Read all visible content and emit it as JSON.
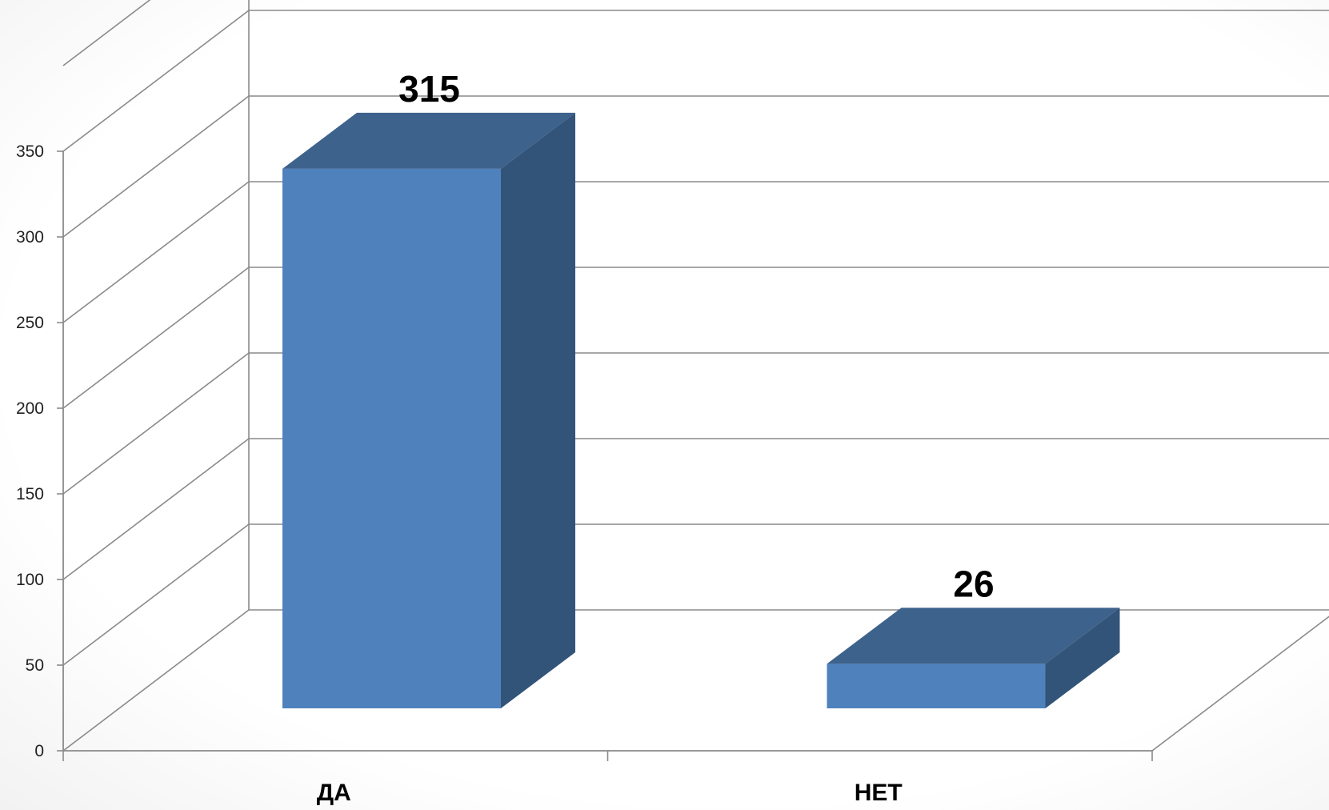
{
  "chart_data": {
    "type": "bar",
    "style": "3d-column",
    "categories": [
      "ДА",
      "НЕТ"
    ],
    "values": [
      315,
      26
    ],
    "data_labels": [
      "315",
      "26"
    ],
    "title": "",
    "xlabel": "",
    "ylabel": "",
    "ylim": [
      0,
      350
    ],
    "yticks": [
      "0",
      "50",
      "100",
      "150",
      "200",
      "250",
      "300",
      "350"
    ],
    "grid": true,
    "legend": "none",
    "colors": {
      "front": "#4f81bd",
      "top": "#3d628c",
      "side": "#335479",
      "grid": "#8a8a8a"
    }
  }
}
